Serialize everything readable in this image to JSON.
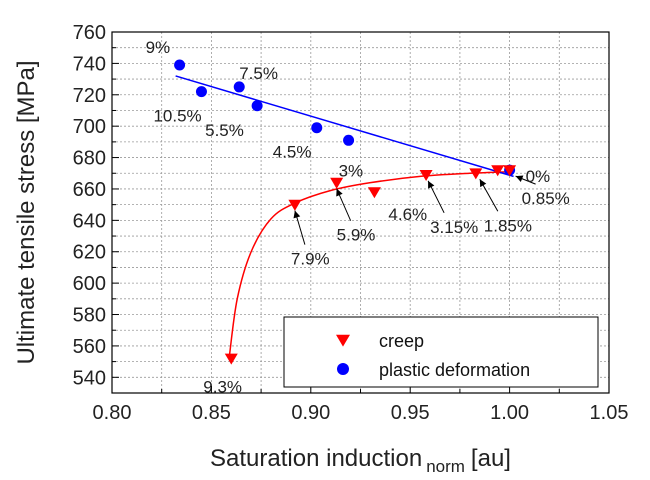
{
  "chart_data": {
    "type": "scatter",
    "xlabel": "Saturation induction",
    "xlabel_subscript": "norm",
    "xlabel_unit": "[au]",
    "ylabel": "Ultimate tensile stress [MPa]",
    "xlim": [
      0.8,
      1.05
    ],
    "ylim": [
      530,
      760
    ],
    "xticks": [
      "0.80",
      "0.85",
      "0.90",
      "0.95",
      "1.00",
      "1.05"
    ],
    "yticks": [
      "540",
      "560",
      "580",
      "600",
      "620",
      "640",
      "660",
      "680",
      "700",
      "720",
      "740",
      "760"
    ],
    "grid": true,
    "legend_position": "bottom-right",
    "series": [
      {
        "name": "creep",
        "marker": "triangle-down",
        "color": "#ff0000",
        "points": [
          {
            "x": 1.0,
            "y": 672,
            "label": "0.85%"
          },
          {
            "x": 0.994,
            "y": 672,
            "label": ""
          },
          {
            "x": 0.983,
            "y": 670,
            "label": "1.85%"
          },
          {
            "x": 0.958,
            "y": 669,
            "label": "3.15%"
          },
          {
            "x": 0.932,
            "y": 658,
            "label": "4.6%"
          },
          {
            "x": 0.913,
            "y": 664,
            "label": "5.9%"
          },
          {
            "x": 0.892,
            "y": 650,
            "label": "7.9%"
          },
          {
            "x": 0.86,
            "y": 552,
            "label": "9.3%"
          }
        ],
        "fit": [
          [
            0.859,
            553
          ],
          [
            0.863,
            590
          ],
          [
            0.87,
            620
          ],
          [
            0.88,
            641
          ],
          [
            0.892,
            651
          ],
          [
            0.91,
            659
          ],
          [
            0.93,
            664
          ],
          [
            0.955,
            668
          ],
          [
            0.98,
            670
          ],
          [
            1.0,
            671
          ]
        ]
      },
      {
        "name": "plastic deformation",
        "marker": "circle",
        "color": "#0000ff",
        "points": [
          {
            "x": 1.0,
            "y": 672,
            "label": "0%"
          },
          {
            "x": 0.919,
            "y": 691,
            "label": "3%"
          },
          {
            "x": 0.903,
            "y": 699,
            "label": "4.5%"
          },
          {
            "x": 0.873,
            "y": 713,
            "label": "5.5%"
          },
          {
            "x": 0.864,
            "y": 725,
            "label": "7.5%"
          },
          {
            "x": 0.845,
            "y": 722,
            "label": "10.5%"
          },
          {
            "x": 0.834,
            "y": 739,
            "label": "9%"
          }
        ],
        "fit": [
          [
            0.832,
            732
          ],
          [
            1.002,
            668
          ]
        ]
      }
    ]
  }
}
